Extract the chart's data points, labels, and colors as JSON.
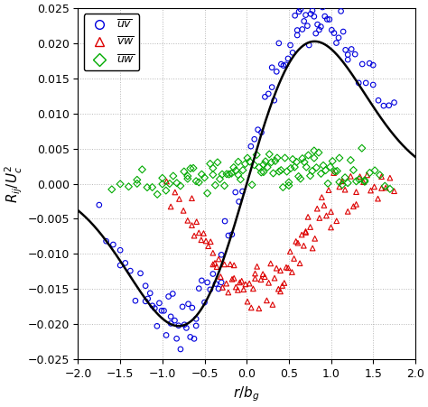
{
  "xlabel": "$r/b_g$",
  "ylabel": "$R_{ij}/U_c^2$",
  "xlim": [
    -2,
    2
  ],
  "ylim": [
    -0.025,
    0.025
  ],
  "yticks": [
    -0.025,
    -0.02,
    -0.015,
    -0.01,
    -0.005,
    0,
    0.005,
    0.01,
    0.015,
    0.02,
    0.025
  ],
  "xticks": [
    -2,
    -1.5,
    -1,
    -0.5,
    0,
    0.5,
    1,
    1.5,
    2
  ],
  "bg_color": "#ffffff",
  "grid_color": "#999999",
  "line_color": "#000000",
  "uv_color": "#0000dd",
  "vw_color": "#dd0000",
  "uw_color": "#00aa00",
  "legend_labels": [
    "$\\overline{uv}$",
    "$\\overline{vw}$",
    "$\\overline{uw}$"
  ],
  "curve_A": 0.0415,
  "curve_b": 0.77
}
